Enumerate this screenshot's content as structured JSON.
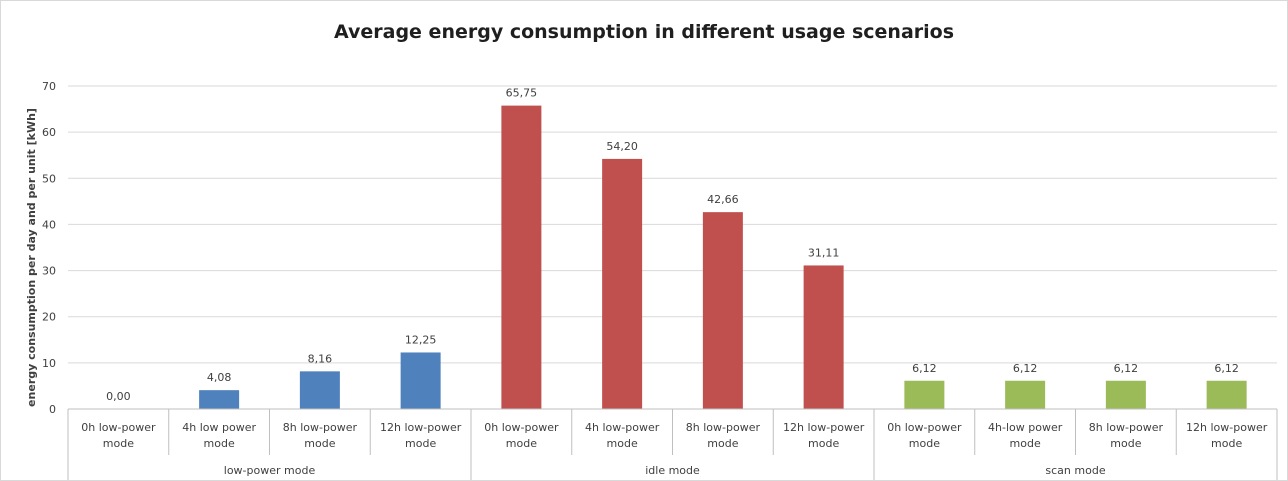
{
  "chart_data": {
    "type": "bar",
    "title": "Average energy consumption in different usage scenarios",
    "xlabel": "",
    "ylabel": "energy consumption per day and per unit [kWh]",
    "ylim": [
      0,
      70
    ],
    "yticks": [
      0,
      10,
      20,
      30,
      40,
      50,
      60,
      70
    ],
    "ytick_labels": [
      "0",
      "10",
      "20",
      "30",
      "40",
      "50",
      "60",
      "70"
    ],
    "grid": true,
    "legend": "none",
    "categories": [
      [
        "0h low-power",
        "mode"
      ],
      [
        "4h low power",
        "mode"
      ],
      [
        "8h low-power",
        "mode"
      ],
      [
        "12h low-power",
        "mode"
      ],
      [
        "0h low-power",
        "mode"
      ],
      [
        "4h low-power",
        "mode"
      ],
      [
        "8h low-power",
        "mode"
      ],
      [
        "12h low-power",
        "mode"
      ],
      [
        "0h low-power",
        "mode"
      ],
      [
        "4h-low power",
        "mode"
      ],
      [
        "8h low-power",
        "mode"
      ],
      [
        "12h low-power",
        "mode"
      ]
    ],
    "values": [
      0.0,
      4.08,
      8.16,
      12.25,
      65.75,
      54.2,
      42.66,
      31.11,
      6.12,
      6.12,
      6.12,
      6.12
    ],
    "data_labels": [
      "0,00",
      "4,08",
      "8,16",
      "12,25",
      "65,75",
      "54,20",
      "42,66",
      "31,11",
      "6,12",
      "6,12",
      "6,12",
      "6,12"
    ],
    "groups": [
      {
        "label": "low-power mode",
        "count": 4,
        "color": "#4f81bd"
      },
      {
        "label": "idle mode",
        "count": 4,
        "color": "#c0504d"
      },
      {
        "label": "scan mode",
        "count": 4,
        "color": "#9bbb59"
      }
    ]
  }
}
